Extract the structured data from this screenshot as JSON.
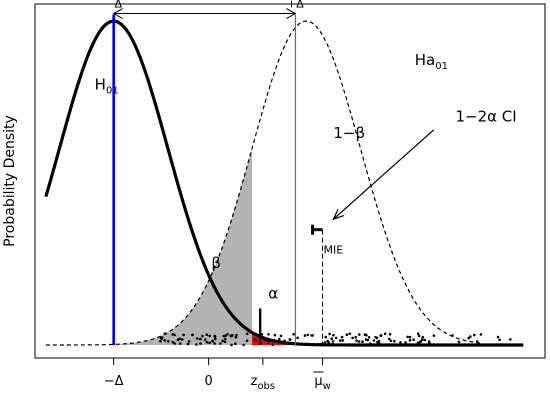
{
  "chart_data": {
    "type": "area",
    "title": "",
    "ylabel": "Probability Density",
    "xlabel": "",
    "xlim": [
      -3.2,
      6.2
    ],
    "ylim": [
      0,
      0.42
    ],
    "grid": false,
    "legend": "none",
    "x_ticks": [
      {
        "x": -1.75,
        "label": "−Δ"
      },
      {
        "x": 0.0,
        "label": "0"
      },
      {
        "x": 1.0,
        "label": "z",
        "sub": "obs"
      },
      {
        "x": 2.1,
        "label": "μ",
        "sub": "w",
        "overbar": true
      }
    ],
    "curves": [
      {
        "id": "h0",
        "mean": -1.75,
        "sd": 1.0,
        "x_from": -3.0,
        "x_to": 5.8,
        "style": "solid-thick"
      },
      {
        "id": "ha",
        "mean": 1.8,
        "sd": 1.0,
        "x_from": -3.0,
        "x_to": 5.0,
        "style": "dashed"
      }
    ],
    "regions": [
      {
        "id": "beta",
        "under": "ha",
        "x_from": -1.75,
        "x_to": 0.8,
        "fill_color": "#b3b3b3"
      },
      {
        "id": "alpha",
        "under": "h0",
        "x_from": 0.8,
        "x_to": 2.2,
        "fill_color": "#ff0000"
      }
    ],
    "verticals": [
      {
        "id": "minus-delta",
        "x": -1.75,
        "from_y": 0.0,
        "to_y": 0.407,
        "color": "#0000ff"
      },
      {
        "id": "plus-delta",
        "x": 1.6,
        "from_y": 0.0,
        "to_y": 0.407,
        "color": "#6a5acd"
      },
      {
        "id": "obs-marker",
        "x": 0.95,
        "from_y": 0.0,
        "to_y": 0.045,
        "color": "#000000"
      }
    ],
    "interval": {
      "x": 2.1,
      "y_from": 0.142,
      "y_to": 0.0,
      "label": "MIE"
    },
    "delta_span": {
      "from": -1.75,
      "to": 1.6,
      "y": 0.407,
      "labels": [
        "−Δ",
        "+Δ"
      ]
    },
    "annotations": [
      {
        "id": "h0-label",
        "x": -2.1,
        "y": 0.315,
        "text": "H",
        "sub": "01"
      },
      {
        "id": "ha-label",
        "x": 3.8,
        "y": 0.345,
        "text": "Ha",
        "sub": "01"
      },
      {
        "id": "one-minus-beta",
        "x": 2.3,
        "y": 0.255,
        "text": "1−β"
      },
      {
        "id": "beta-label",
        "x": 0.05,
        "y": 0.095,
        "text": "β"
      },
      {
        "id": "alpha-label",
        "x": 1.1,
        "y": 0.057,
        "text": "α",
        "color": "#000000"
      },
      {
        "id": "ci-label",
        "x": 4.55,
        "y": 0.275,
        "text": "1−2α CI"
      }
    ],
    "ci_arrow": {
      "from": [
        4.15,
        0.265
      ],
      "to": [
        2.3,
        0.155
      ]
    },
    "scatter": {
      "count": 150,
      "x_from": -0.9,
      "x_to": 5.6,
      "y_from": 0.0,
      "y_to": 0.014
    }
  }
}
